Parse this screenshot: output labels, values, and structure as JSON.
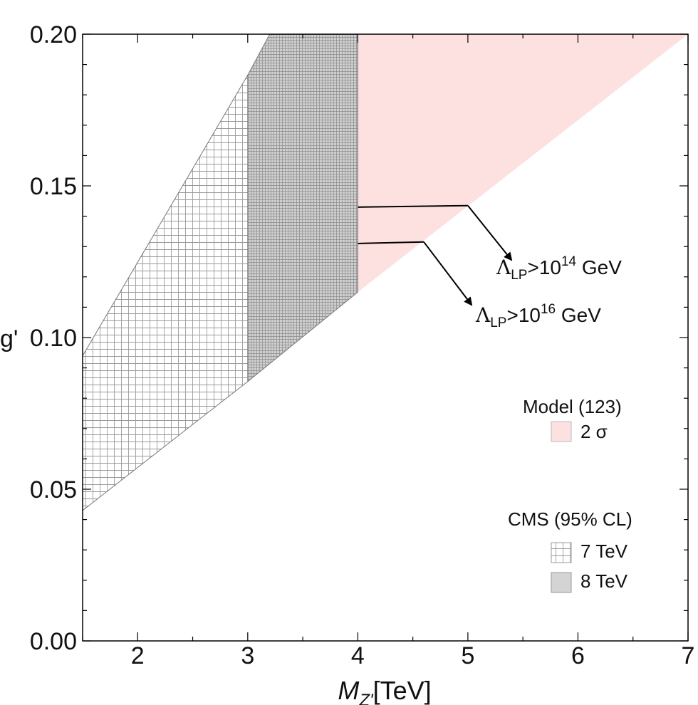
{
  "chart_data": {
    "type": "area",
    "title": "",
    "xlabel": {
      "var": "M",
      "sub": "Z'",
      "unit": "[TeV]"
    },
    "ylabel": "g'",
    "xlim": [
      1.5,
      7
    ],
    "ylim": [
      0.0,
      0.2
    ],
    "xticks": [
      2,
      3,
      4,
      5,
      6,
      7
    ],
    "xtick_labels": [
      "2",
      "3",
      "4",
      "5",
      "6",
      "7"
    ],
    "yticks": [
      0.0,
      0.05,
      0.1,
      0.15,
      0.2
    ],
    "ytick_labels": [
      "0.00",
      "0.05",
      "0.10",
      "0.15",
      "0.20"
    ],
    "grid": false,
    "regions": [
      {
        "name": "Model (123) 2σ",
        "style": "fill",
        "color": "#fde0e0",
        "polygon": [
          [
            4.0,
            0.115
          ],
          [
            7.0,
            0.2
          ],
          [
            4.0,
            0.2
          ]
        ]
      },
      {
        "name": "CMS 8 TeV",
        "style": "dense-hatch",
        "color": "#c8c8c8",
        "polygon": [
          [
            3.0,
            0.0855
          ],
          [
            4.0,
            0.115
          ],
          [
            4.0,
            0.2
          ],
          [
            3.2,
            0.2
          ],
          [
            3.0,
            0.1865
          ]
        ]
      },
      {
        "name": "CMS 7 TeV",
        "style": "grid-hatch",
        "color": "#ffffff",
        "polygon": [
          [
            1.5,
            0.043
          ],
          [
            3.0,
            0.0855
          ],
          [
            3.0,
            0.1865
          ],
          [
            1.5,
            0.094
          ]
        ]
      }
    ],
    "annotations": [
      {
        "label_main": "Λ",
        "label_sub": "LP",
        "label_rest": ">10",
        "label_exp": "14",
        "label_unit": " GeV",
        "line": [
          [
            4.0,
            0.143
          ],
          [
            5.0,
            0.1435
          ]
        ]
      },
      {
        "label_main": "Λ",
        "label_sub": "LP",
        "label_rest": ">10",
        "label_exp": "16",
        "label_unit": " GeV",
        "line": [
          [
            4.0,
            0.131
          ],
          [
            4.6,
            0.1315
          ]
        ]
      }
    ],
    "legend": [
      {
        "group_title": "Model (123)",
        "entries": [
          {
            "label": "2 σ",
            "swatch": "pink"
          }
        ]
      },
      {
        "group_title": "CMS (95% CL)",
        "entries": [
          {
            "label": "7 TeV",
            "swatch": "grid-hatch"
          },
          {
            "label": "8 TeV",
            "swatch": "gray"
          }
        ]
      }
    ],
    "legend_position": "right-middle"
  }
}
